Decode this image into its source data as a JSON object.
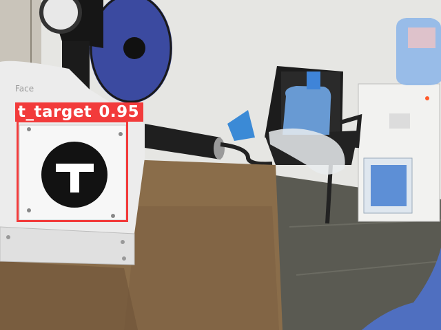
{
  "detection": {
    "class_label": "t_target",
    "confidence": "0.95",
    "box_color": "#f23b3b"
  },
  "marker": {
    "glyph": "T",
    "label_text": "Face"
  },
  "scene_objects": [
    "wall-fan",
    "water-cooler",
    "water-bottle",
    "office-chair",
    "wooden-desk",
    "target-marker",
    "plastic-bag",
    "hair-dryer",
    "tiled-floor",
    "blue-cloth"
  ]
}
